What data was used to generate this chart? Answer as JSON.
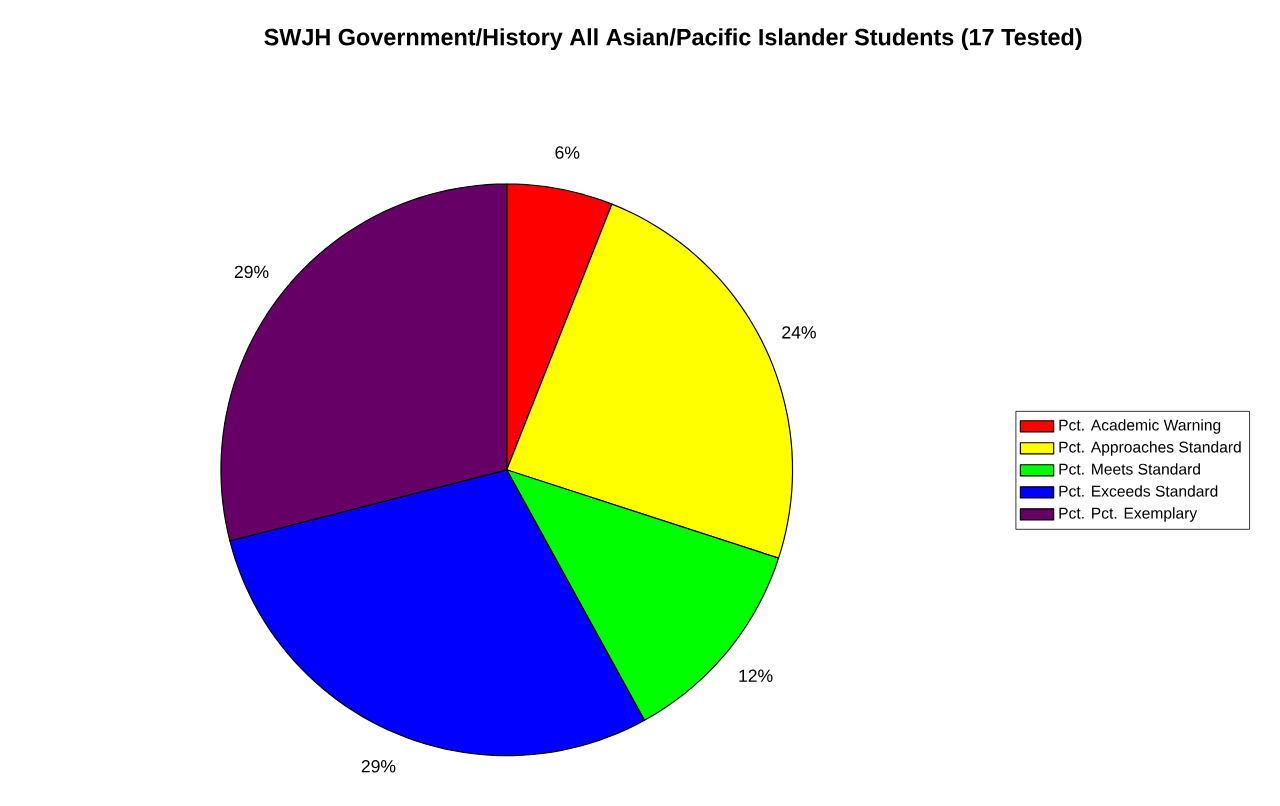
{
  "chart_data": {
    "type": "pie",
    "title": "SWJH Government/History All Asian/Pacific Islander Students (17 Tested)",
    "categories": [
      "Pct. Academic Warning",
      "Pct. Approaches Standard",
      "Pct. Meets Standard",
      "Pct. Exceeds Standard",
      "Pct. Pct. Exemplary"
    ],
    "values": [
      6,
      24,
      12,
      29,
      29
    ],
    "value_labels": [
      "6%",
      "24%",
      "12%",
      "29%",
      "29%"
    ],
    "colors": [
      "#ff0000",
      "#ffff00",
      "#00ff00",
      "#0000ff",
      "#660066"
    ],
    "legend": "right"
  }
}
